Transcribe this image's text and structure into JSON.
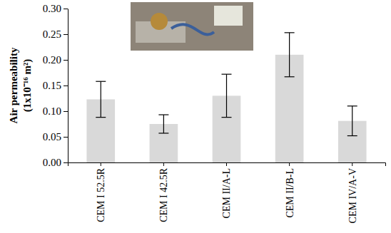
{
  "chart_data": {
    "type": "bar",
    "y_label": "Air permeability\n(1x10⁻¹⁶ m²)",
    "categories": [
      "CEM I 52.5R",
      "CEM I 42.5R",
      "CEM II/A-L",
      "CEM II/B-L",
      "CEM IV/A-V"
    ],
    "values": [
      0.123,
      0.075,
      0.13,
      0.21,
      0.081
    ],
    "errors": [
      0.035,
      0.018,
      0.042,
      0.043,
      0.029
    ],
    "color": "#d9d9d9",
    "ylim": [
      0,
      0.3
    ],
    "yticks": [
      {
        "value": 0,
        "label": "0.00"
      },
      0.05,
      {
        "value": 0.1,
        "label": "0.10"
      },
      0.15,
      {
        "value": 0.2,
        "label": "0.20"
      },
      0.25,
      {
        "value": 0.3,
        "label": "0.30"
      }
    ],
    "grid": false
  }
}
